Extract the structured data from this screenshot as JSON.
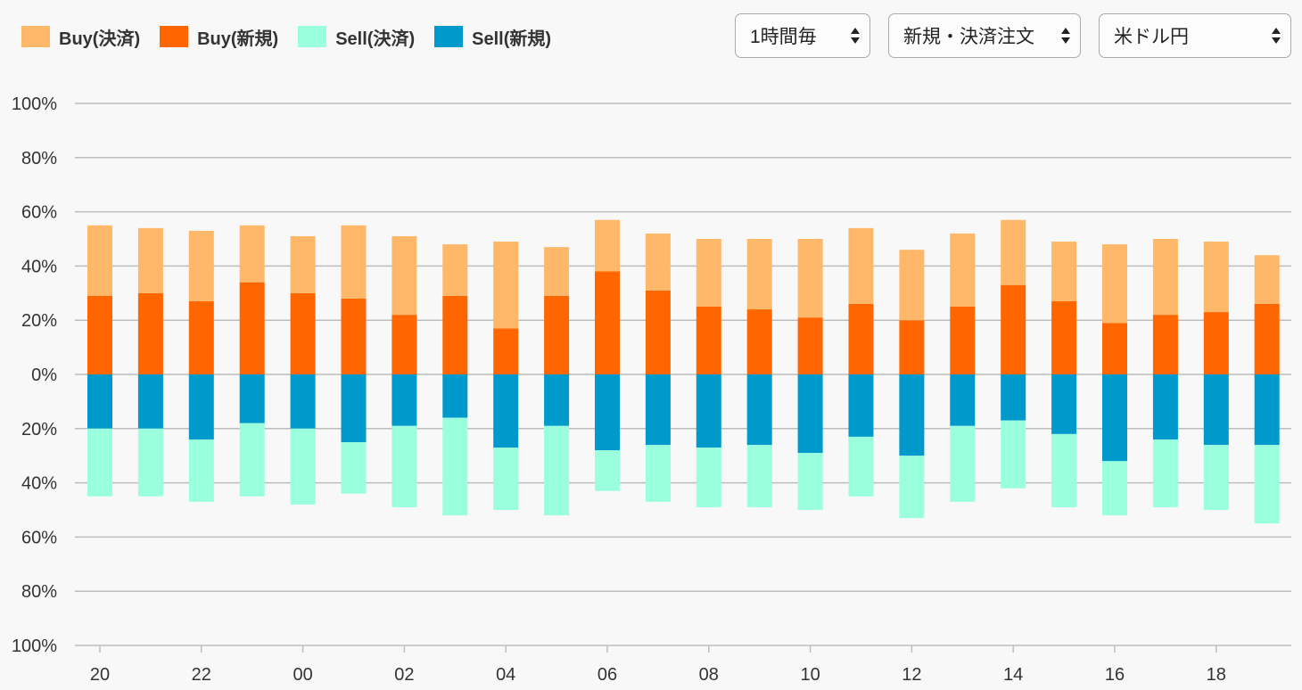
{
  "legend": [
    {
      "label": "Buy(決済)",
      "color": "#ffb86a"
    },
    {
      "label": "Buy(新規)",
      "color": "#ff6600"
    },
    {
      "label": "Sell(決済)",
      "color": "#99ffdd"
    },
    {
      "label": "Sell(新規)",
      "color": "#0099cc"
    }
  ],
  "controls": {
    "interval": "1時間毎",
    "order_type": "新規・決済注文",
    "currency_pair": "米ドル円"
  },
  "chart_data": {
    "type": "bar",
    "stacked": true,
    "diverging": true,
    "y_tick_labels": [
      "100%",
      "80%",
      "60%",
      "40%",
      "20%",
      "0%",
      "20%",
      "40%",
      "60%",
      "80%",
      "100%"
    ],
    "x_tick_labels": [
      "20",
      "22",
      "00",
      "02",
      "04",
      "06",
      "08",
      "10",
      "12",
      "14",
      "16",
      "18"
    ],
    "ylim": [
      -100,
      100
    ],
    "grid": true,
    "legend_position": "top-left",
    "categories": [
      "20",
      "21",
      "22",
      "23",
      "00",
      "01",
      "02",
      "03",
      "04",
      "05",
      "06",
      "07",
      "08",
      "09",
      "10",
      "11",
      "12",
      "13",
      "14",
      "15",
      "16",
      "17",
      "18",
      "19"
    ],
    "series": [
      {
        "name": "Buy(新規)",
        "color": "#ff6600",
        "values": [
          29,
          30,
          27,
          34,
          30,
          28,
          22,
          29,
          17,
          29,
          38,
          31,
          25,
          24,
          21,
          26,
          20,
          25,
          33,
          27,
          19,
          22,
          23,
          26
        ]
      },
      {
        "name": "Buy(決済)",
        "color": "#ffb86a",
        "values": [
          26,
          24,
          26,
          21,
          21,
          27,
          29,
          19,
          32,
          18,
          19,
          21,
          25,
          26,
          29,
          28,
          26,
          27,
          24,
          22,
          29,
          28,
          26,
          18
        ]
      },
      {
        "name": "Sell(新規)",
        "color": "#0099cc",
        "values": [
          -20,
          -20,
          -24,
          -18,
          -20,
          -25,
          -19,
          -16,
          -27,
          -19,
          -28,
          -26,
          -27,
          -26,
          -29,
          -23,
          -30,
          -19,
          -17,
          -22,
          -32,
          -24,
          -26,
          -26
        ]
      },
      {
        "name": "Sell(決済)",
        "color": "#99ffdd",
        "values": [
          -25,
          -25,
          -23,
          -27,
          -28,
          -19,
          -30,
          -36,
          -23,
          -33,
          -15,
          -21,
          -22,
          -23,
          -21,
          -22,
          -23,
          -28,
          -25,
          -27,
          -20,
          -25,
          -24,
          -29
        ]
      }
    ]
  }
}
